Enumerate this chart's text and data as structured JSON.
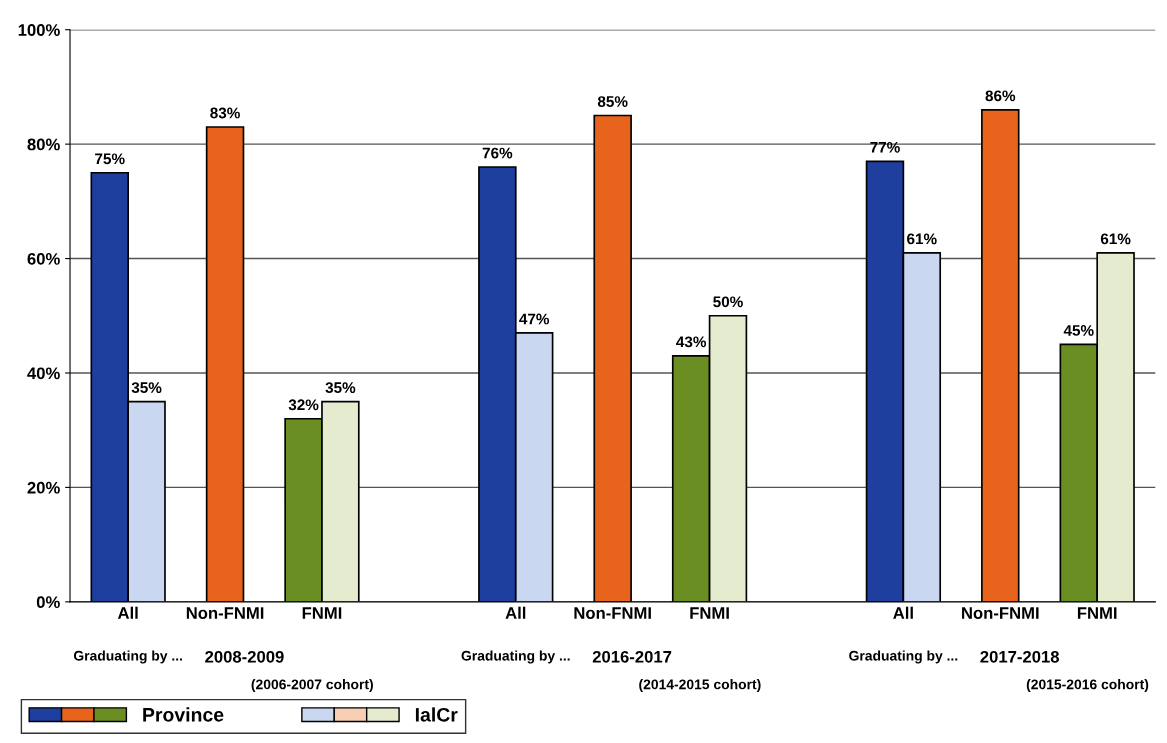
{
  "chart_data": {
    "type": "bar",
    "categories": [
      "All",
      "Non-FNMI",
      "FNMI",
      null,
      "All",
      "Non-FNMI",
      "FNMI",
      null,
      "All",
      "Non-FNMI",
      "FNMI"
    ],
    "series": [
      {
        "name": "Province",
        "colors": [
          "#1f3f9e",
          "#e8641c",
          "#6b8e23",
          null,
          "#1f3f9e",
          "#e8641c",
          "#6b8e23",
          null,
          "#1f3f9e",
          "#e8641c",
          "#6b8e23"
        ],
        "values": [
          75,
          83,
          32,
          null,
          76,
          85,
          43,
          null,
          77,
          86,
          45
        ]
      },
      {
        "name": "IalCr",
        "colors": [
          "#c9d8f0",
          "#f6cfb4",
          "#e4ebcf",
          null,
          "#c9d8f0",
          "#f6cfb4",
          "#e4ebcf",
          null,
          "#c9d8f0",
          "#f6cfb4",
          "#e4ebcf"
        ],
        "values": [
          35,
          null,
          35,
          null,
          47,
          null,
          50,
          null,
          61,
          null,
          61
        ]
      }
    ],
    "value_labels": [
      [
        "75%",
        "83%",
        "32%",
        null,
        "76%",
        "85%",
        "43%",
        null,
        "77%",
        "86%",
        "45%"
      ],
      [
        "35%",
        null,
        "35%",
        null,
        "47%",
        null,
        "50%",
        null,
        "61%",
        null,
        "61%"
      ]
    ],
    "ylim": [
      0,
      100
    ],
    "yticks": [
      {
        "value": 0,
        "label": "0%"
      },
      {
        "value": 20,
        "label": "20%"
      },
      {
        "value": 40,
        "label": "40%"
      },
      {
        "value": 60,
        "label": "60%"
      },
      {
        "value": 80,
        "label": "80%"
      },
      {
        "value": 100,
        "label": "100%"
      }
    ],
    "grid": "y",
    "legend": "bottom left",
    "annotations": [
      "Graduating by ...",
      "2008-2009",
      "(2006-2007 cohort)",
      "Graduating by ...",
      "2016-2017",
      "(2014-2015 cohort)",
      "Graduating by ...",
      "2017-2018",
      "(2015-2016 cohort)"
    ]
  }
}
